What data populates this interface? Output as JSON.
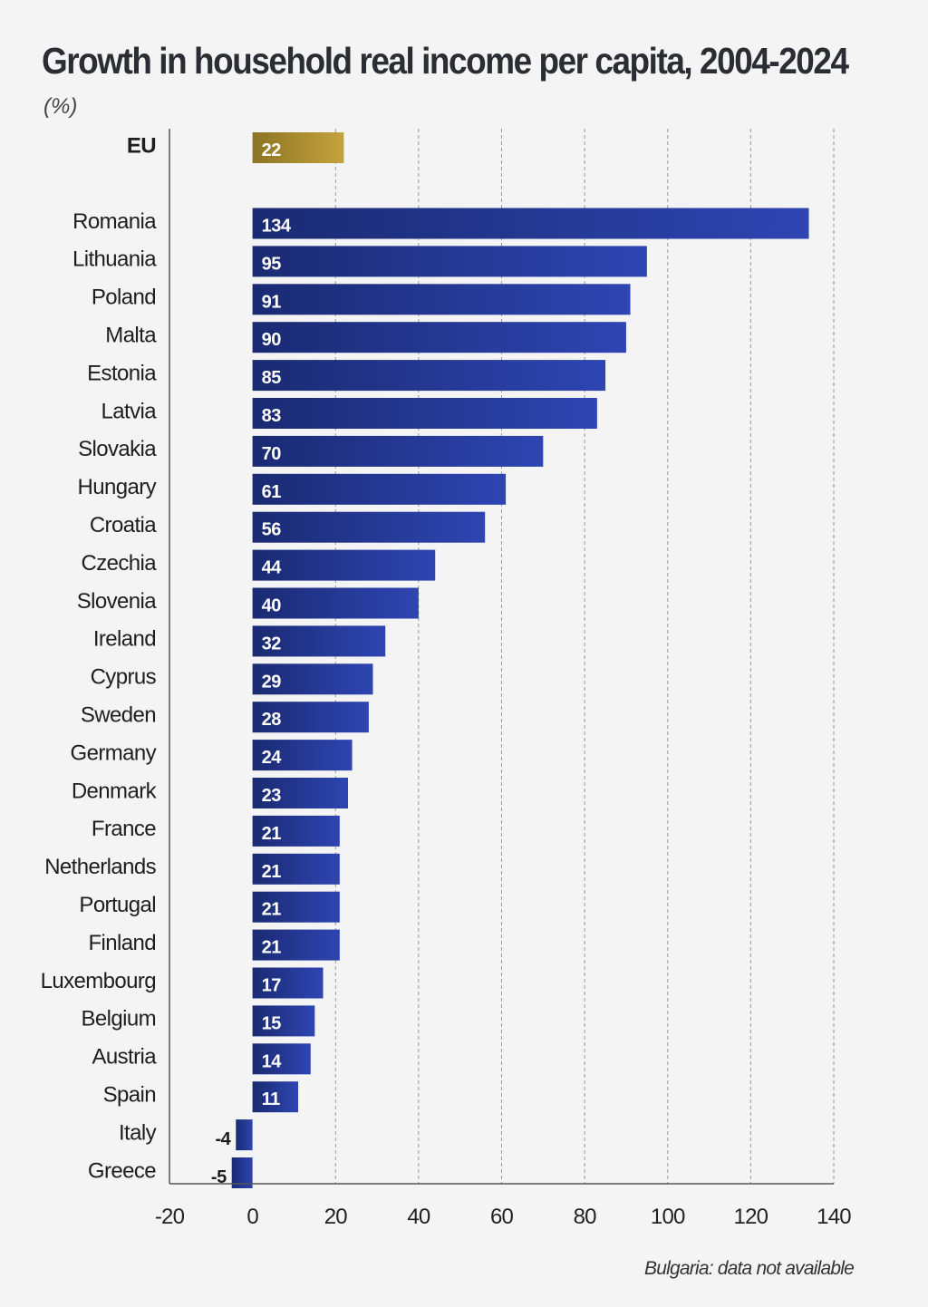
{
  "title": "Growth in household real income per capita, 2004-2024",
  "subtitle": "(%)",
  "footnote": "Bulgaria: data not available",
  "colors": {
    "eu_bar_start": "#8c7424",
    "eu_bar_end": "#c4a33c",
    "country_bar_start": "#1a2a72",
    "country_bar_end": "#2e45b2",
    "gridline": "#999999",
    "axis": "#555555",
    "background": "#f4f4f4"
  },
  "chart_data": {
    "type": "bar",
    "orientation": "horizontal",
    "title": "Growth in household real income per capita, 2004-2024",
    "unit": "(%)",
    "highlight": {
      "category": "EU",
      "value": 22
    },
    "categories": [
      "Romania",
      "Lithuania",
      "Poland",
      "Malta",
      "Estonia",
      "Latvia",
      "Slovakia",
      "Hungary",
      "Croatia",
      "Czechia",
      "Slovenia",
      "Ireland",
      "Cyprus",
      "Sweden",
      "Germany",
      "Denmark",
      "France",
      "Netherlands",
      "Portugal",
      "Finland",
      "Luxembourg",
      "Belgium",
      "Austria",
      "Spain",
      "Italy",
      "Greece"
    ],
    "values": [
      134,
      95,
      91,
      90,
      85,
      83,
      70,
      61,
      56,
      44,
      40,
      32,
      29,
      28,
      24,
      23,
      21,
      21,
      21,
      21,
      17,
      15,
      14,
      11,
      -4,
      -5
    ],
    "xlim": [
      -20,
      140
    ],
    "xticks": [
      -20,
      0,
      20,
      40,
      60,
      80,
      100,
      120,
      140
    ],
    "grid": "vertical dashed",
    "legend": "none"
  }
}
